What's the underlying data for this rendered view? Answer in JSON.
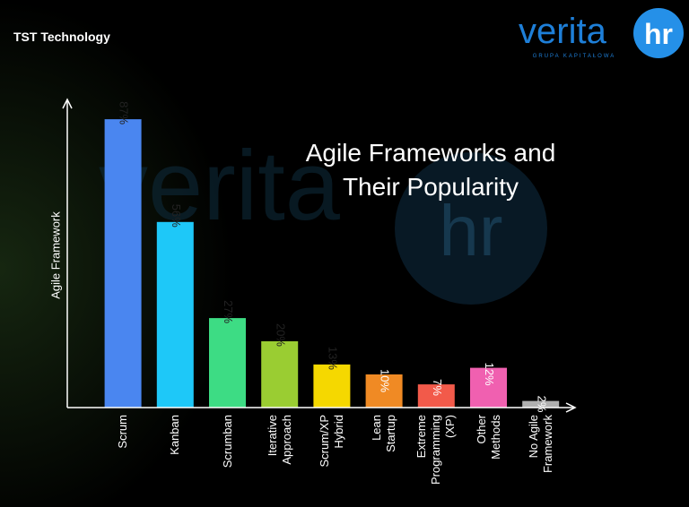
{
  "header": {
    "brand": "TST Technology",
    "logo": "verita",
    "logo_badge": "hr",
    "logo_tagline": "GRUPA KAPITAŁOWA"
  },
  "chart_data": {
    "type": "bar",
    "title": "Agile Frameworks and\nTheir Popularity",
    "y_label": "Agile Framework",
    "categories": [
      "Scrum",
      "Kanban",
      "Scrumban",
      "Iterative\nApproach",
      "Scrum/XP\nHybrid",
      "Lean\nStartup",
      "Extreme\nProgramming\n(XP)",
      "Other\nMethods",
      "No Agile\nFramework"
    ],
    "values": [
      87,
      56,
      27,
      20,
      13,
      10,
      7,
      12,
      2
    ],
    "value_labels": [
      "87%",
      "56%",
      "27%",
      "20%",
      "13%",
      "10%",
      "7%",
      "12%",
      "2%"
    ],
    "colors": [
      "#4a86f0",
      "#1ec8f8",
      "#3ddc84",
      "#9acd32",
      "#f5d800",
      "#f08a24",
      "#f25a4a",
      "#f060b0",
      "#b0b0b0"
    ],
    "ylim": [
      0,
      90
    ]
  }
}
